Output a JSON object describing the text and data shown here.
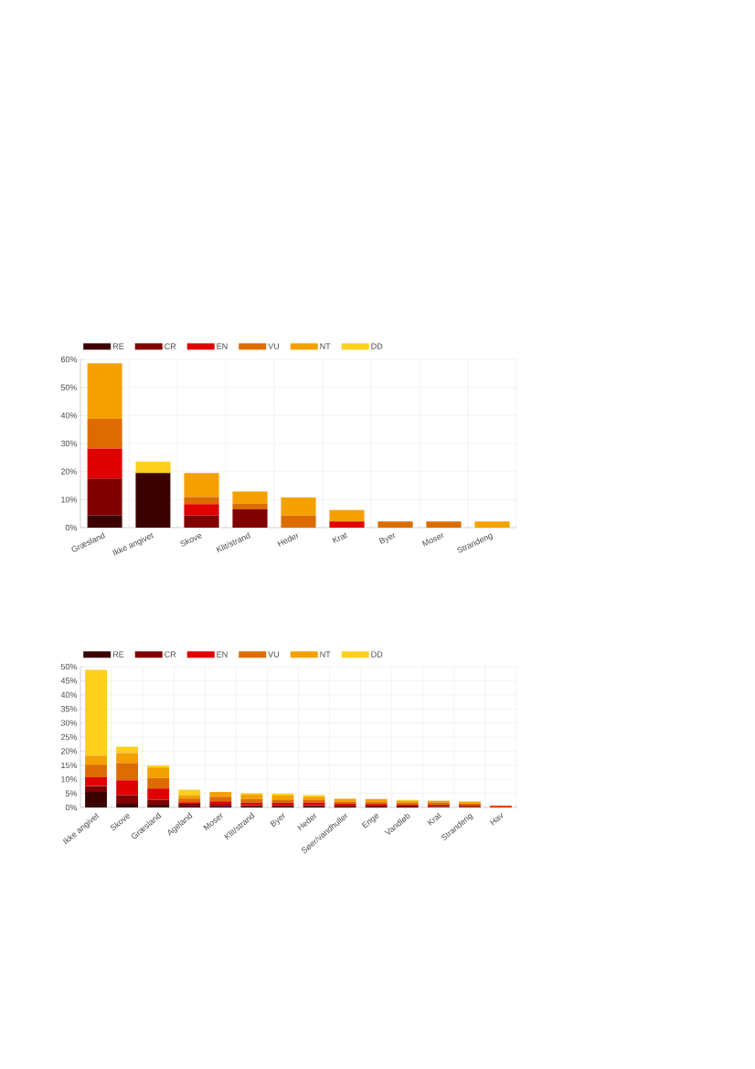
{
  "chart_data": [
    {
      "type": "bar",
      "stacked": true,
      "legend": "top",
      "grid": true,
      "categories": [
        "Græsland",
        "Ikke angivet",
        "Skove",
        "Klit/strand",
        "Heder",
        "Krat",
        "Byer",
        "Moser",
        "Strandeng"
      ],
      "ylim": [
        0,
        60
      ],
      "yticks": [
        {
          "value": 0,
          "label": "0%"
        },
        {
          "value": 10,
          "label": "10%"
        },
        {
          "value": 20,
          "label": "20%"
        },
        {
          "value": 30,
          "label": "30%"
        },
        {
          "value": 40,
          "label": "40%"
        },
        {
          "value": 50,
          "label": "50%"
        },
        {
          "value": 60,
          "label": "60%"
        }
      ],
      "series": [
        {
          "name": "RE",
          "color": "#3b0000",
          "values": [
            4.3,
            19.5,
            0,
            0,
            0,
            0,
            0,
            0,
            0
          ]
        },
        {
          "name": "CR",
          "color": "#800000",
          "values": [
            13.2,
            0,
            4.3,
            6.5,
            0,
            0,
            0,
            0,
            0
          ]
        },
        {
          "name": "EN",
          "color": "#e00000",
          "values": [
            10.7,
            0,
            4.1,
            0,
            0,
            2.2,
            0,
            0,
            0
          ]
        },
        {
          "name": "VU",
          "color": "#dc6c00",
          "values": [
            10.6,
            0,
            2.5,
            2.0,
            4.3,
            0,
            2.2,
            2.2,
            0
          ]
        },
        {
          "name": "NT",
          "color": "#f4a100",
          "values": [
            19.8,
            0,
            8.6,
            4.4,
            6.5,
            4.1,
            0,
            0,
            2.2
          ]
        },
        {
          "name": "DD",
          "color": "#fcd01c",
          "values": [
            0,
            4.1,
            0,
            0,
            0,
            0,
            0,
            0,
            0
          ]
        }
      ]
    },
    {
      "type": "bar",
      "stacked": true,
      "legend": "top",
      "grid": true,
      "categories": [
        "Ikke angivet",
        "Skove",
        "Græsland",
        "Ageland",
        "Moser",
        "Klit/strand",
        "Byer",
        "Heder",
        "Søer/vandhuller",
        "Enge",
        "Vandløb",
        "Krat",
        "Strandeng",
        "Hav"
      ],
      "ylim": [
        0,
        50
      ],
      "yticks": [
        {
          "value": 0,
          "label": "0%"
        },
        {
          "value": 5,
          "label": "5%"
        },
        {
          "value": 10,
          "label": "10%"
        },
        {
          "value": 15,
          "label": "15%"
        },
        {
          "value": 20,
          "label": "20%"
        },
        {
          "value": 25,
          "label": "25%"
        },
        {
          "value": 30,
          "label": "30%"
        },
        {
          "value": 35,
          "label": "35%"
        },
        {
          "value": 40,
          "label": "40%"
        },
        {
          "value": 45,
          "label": "45%"
        },
        {
          "value": 50,
          "label": "50%"
        }
      ],
      "series": [
        {
          "name": "RE",
          "color": "#3b0000",
          "values": [
            5.5,
            1.3,
            1.0,
            0.6,
            0.5,
            0.4,
            0.4,
            0.4,
            0.3,
            0.3,
            0.3,
            0.2,
            0.2,
            0
          ]
        },
        {
          "name": "CR",
          "color": "#800000",
          "values": [
            2.2,
            3.1,
            1.8,
            0.7,
            0.5,
            0.4,
            0.5,
            0.4,
            0.3,
            0.3,
            0.3,
            0.2,
            0.2,
            0.1
          ]
        },
        {
          "name": "EN",
          "color": "#e00000",
          "values": [
            3.0,
            5.3,
            3.9,
            0.6,
            1.2,
            0.8,
            0.7,
            1.0,
            0.7,
            0.6,
            0.4,
            0.6,
            0.5,
            0.2
          ]
        },
        {
          "name": "VU",
          "color": "#dc6c00",
          "values": [
            4.5,
            6.1,
            3.7,
            1.3,
            1.6,
            1.4,
            1.2,
            0.8,
            0.8,
            0.7,
            0.7,
            0.8,
            0.5,
            0.4
          ]
        },
        {
          "name": "NT",
          "color": "#f4a100",
          "values": [
            3.2,
            3.5,
            3.8,
            1.2,
            1.7,
            1.6,
            1.6,
            1.2,
            1.0,
            1.1,
            0.7,
            0.6,
            0.7,
            0
          ]
        },
        {
          "name": "DD",
          "color": "#fcd01c",
          "values": [
            30.5,
            2.3,
            0.7,
            1.9,
            0,
            0.5,
            0.5,
            0.6,
            null,
            0,
            0.3,
            0,
            0,
            0
          ]
        }
      ]
    }
  ]
}
